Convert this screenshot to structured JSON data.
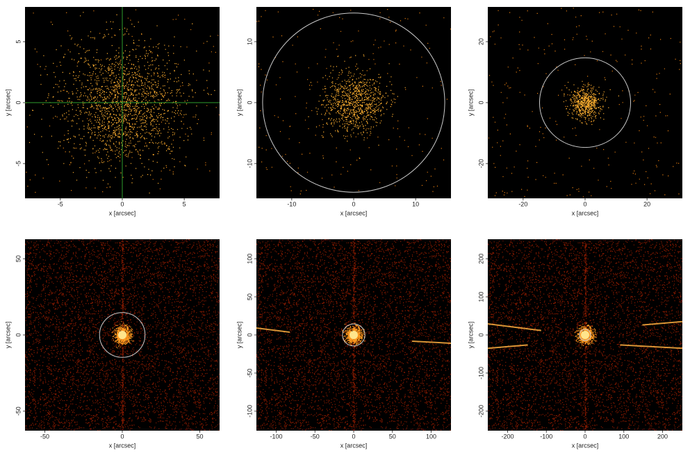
{
  "chart_data": [
    {
      "type": "image",
      "xlabel": "x [arcsec]",
      "ylabel": "y [arcsec]",
      "xlim": [
        -7.85,
        7.85
      ],
      "ylim": [
        -7.85,
        7.85
      ],
      "xticks": [
        -5,
        0,
        5
      ],
      "yticks": [
        -5,
        0,
        5
      ],
      "crosshair": {
        "x": 0,
        "y": 0,
        "color": "#2e9e2e"
      }
    },
    {
      "type": "image",
      "xlabel": "x [arcsec]",
      "ylabel": "y [arcsec]",
      "xlim": [
        -15.7,
        15.7
      ],
      "ylim": [
        -15.7,
        15.7
      ],
      "xticks": [
        -10,
        0,
        10
      ],
      "yticks": [
        -10,
        0,
        10
      ],
      "aperture_radius": 14.7
    },
    {
      "type": "image",
      "xlabel": "x [arcsec]",
      "ylabel": "y [arcsec]",
      "xlim": [
        -31.4,
        31.4
      ],
      "ylim": [
        -31.4,
        31.4
      ],
      "xticks": [
        -20,
        0,
        20
      ],
      "yticks": [
        -20,
        0,
        20
      ],
      "aperture_radius": 14.7
    },
    {
      "type": "image",
      "xlabel": "x [arcsec]",
      "ylabel": "y [arcsec]",
      "xlim": [
        -62.8,
        62.8
      ],
      "ylim": [
        -62.8,
        62.8
      ],
      "xticks": [
        -50,
        0,
        50
      ],
      "yticks": [
        -50,
        0,
        50
      ],
      "aperture_radius": 14.7
    },
    {
      "type": "image",
      "xlabel": "x [arcsec]",
      "ylabel": "y [arcsec]",
      "xlim": [
        -125.6,
        125.6
      ],
      "ylim": [
        -125.6,
        125.6
      ],
      "xticks": [
        -100,
        -50,
        0,
        50,
        100
      ],
      "yticks": [
        -100,
        -50,
        0,
        50,
        100
      ],
      "aperture_radius": 14.5
    },
    {
      "type": "image",
      "xlabel": "x [arcsec]",
      "ylabel": "y [arcsec]",
      "xlim": [
        -251.2,
        251.2
      ],
      "ylim": [
        -251.2,
        251.2
      ],
      "xticks": [
        -200,
        -100,
        0,
        100,
        200
      ],
      "yticks": [
        -200,
        -100,
        0,
        100,
        200
      ],
      "aperture_radius": 14.5
    }
  ]
}
